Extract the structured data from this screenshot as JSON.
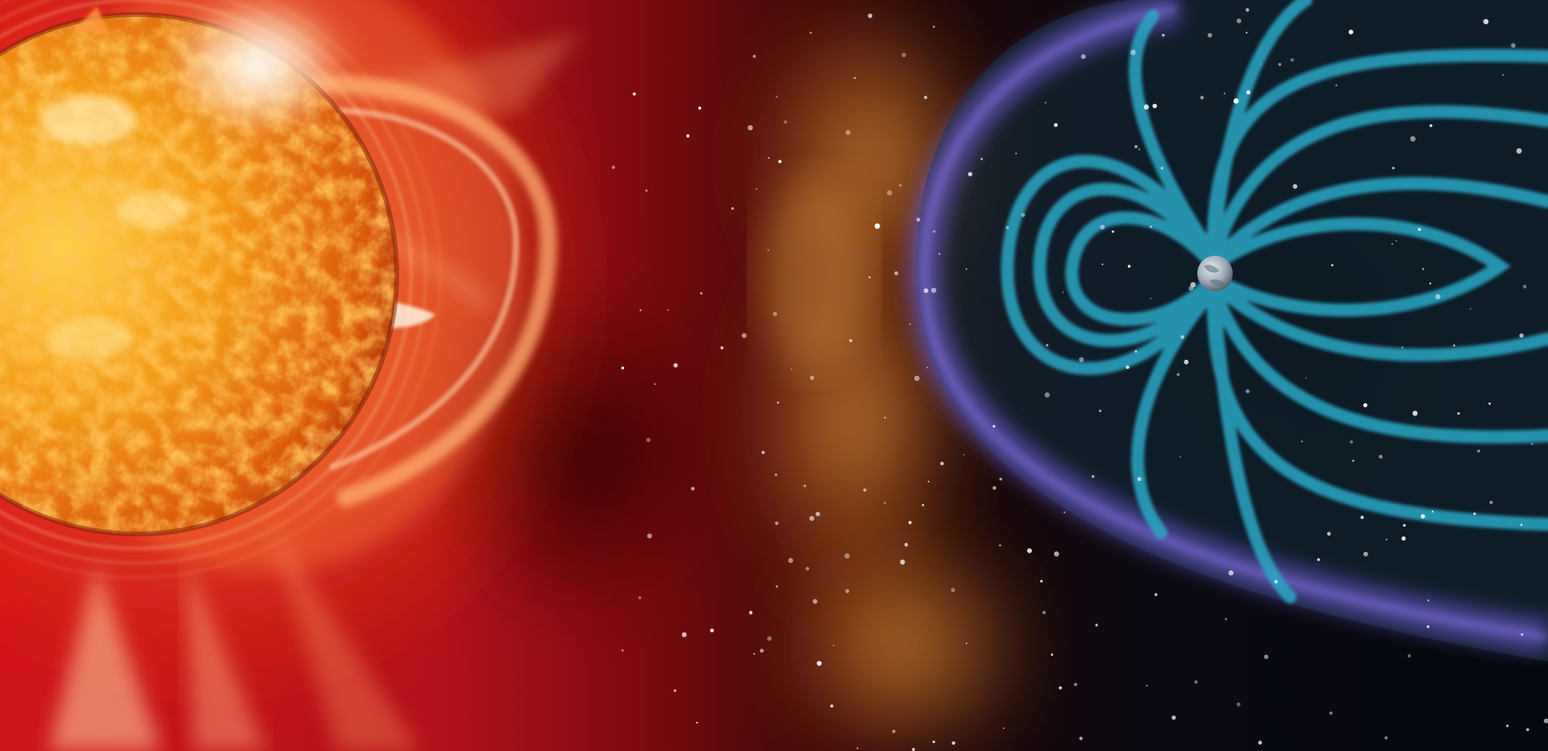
{
  "scene": {
    "colors": {
      "corona_red": "#b3121a",
      "deep_red": "#6e0a0c",
      "sun_core": "#ffd24a",
      "sun_mid": "#f08a10",
      "sun_edge": "#c2440a",
      "plasma_orange": "#e08a2a",
      "space_black": "#05080f",
      "field_cyan": "#29a7c4",
      "shell_violet": "#6a58c8",
      "earth_gray": "#b8c2cc"
    },
    "icons": {
      "sun": "sun-icon",
      "earth": "earth-icon"
    }
  }
}
